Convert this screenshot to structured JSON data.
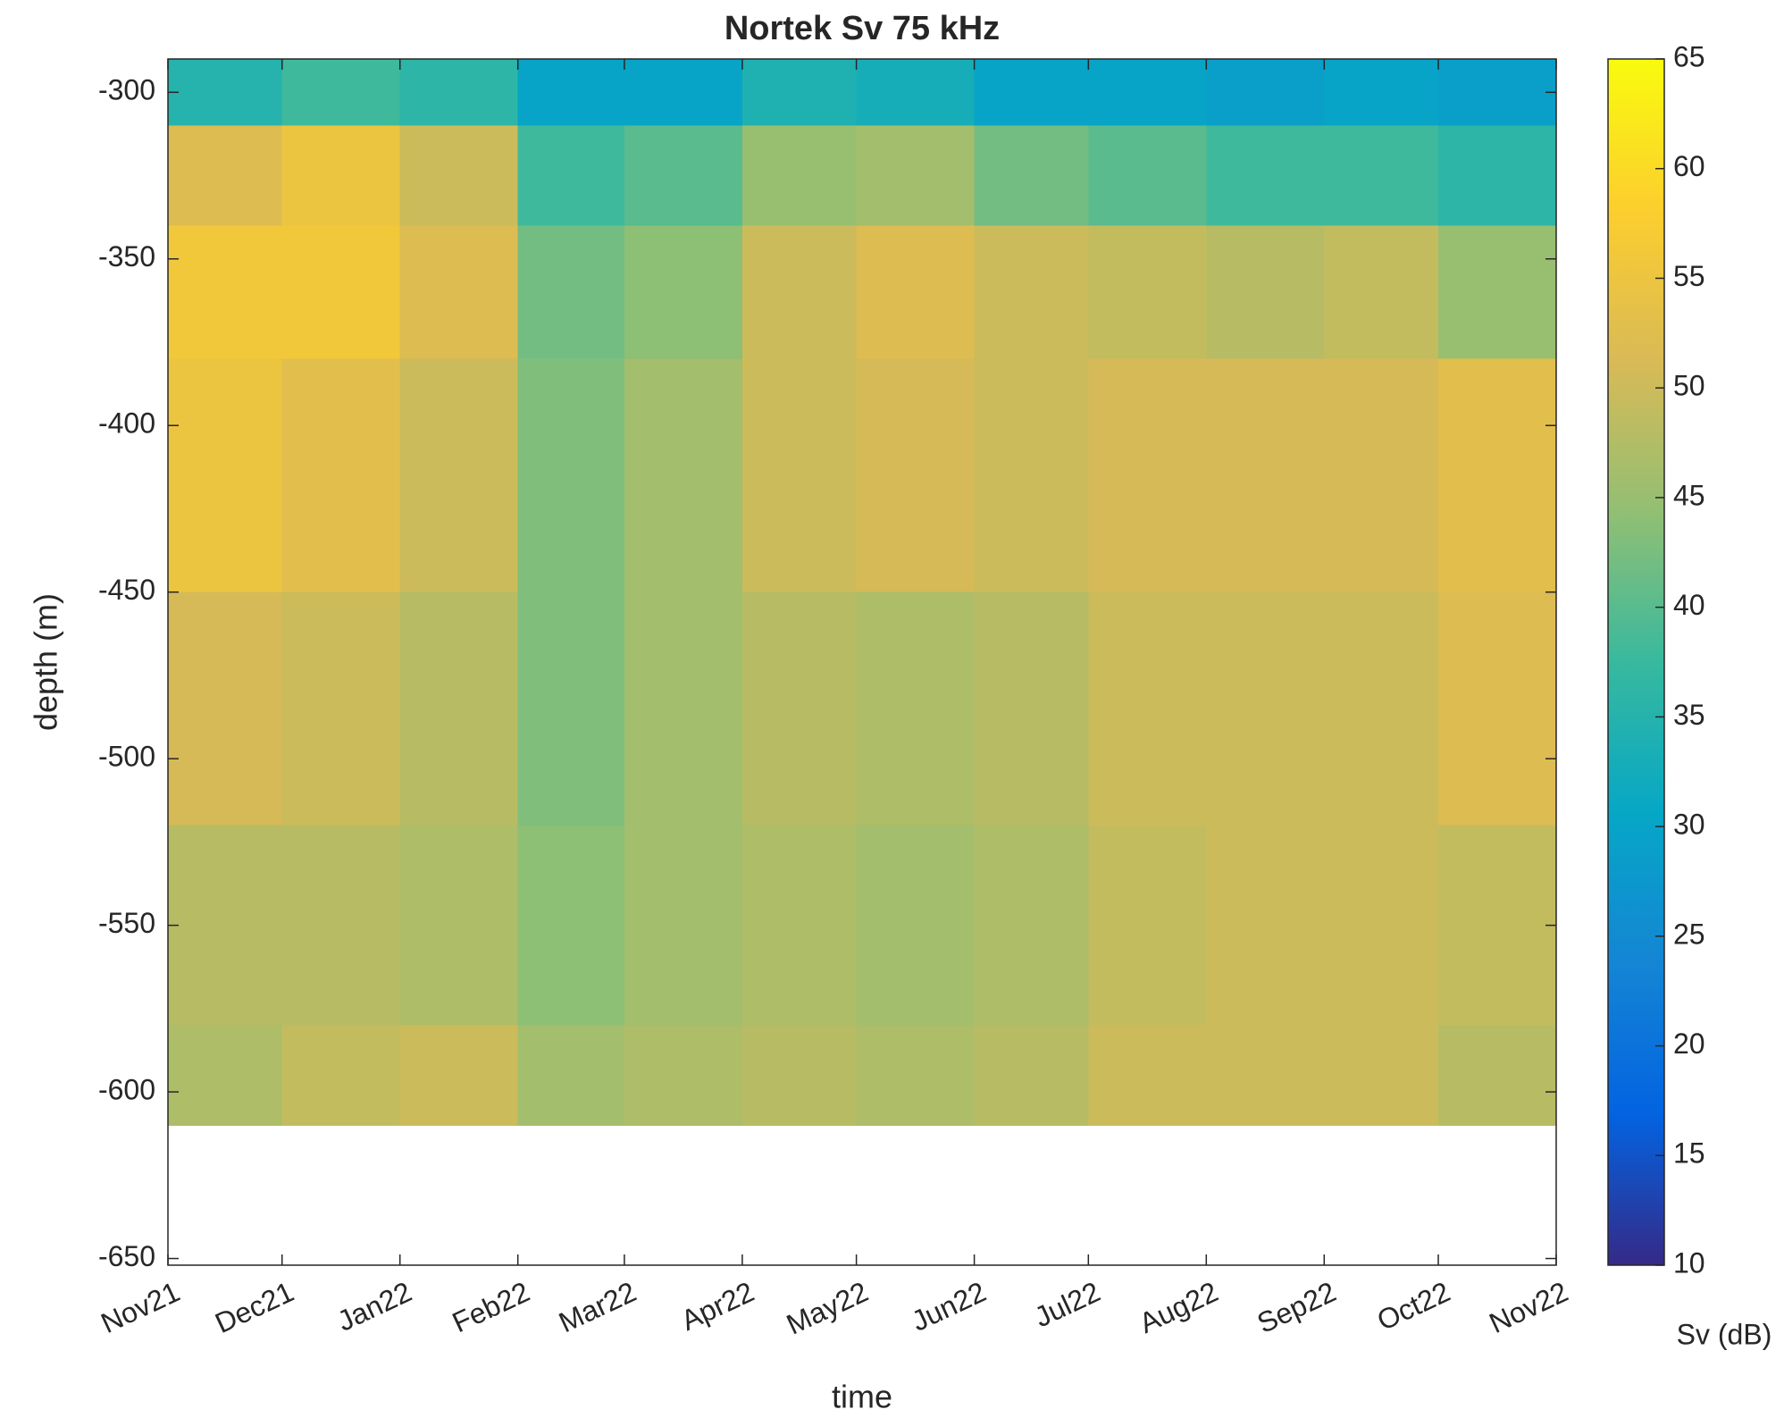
{
  "chart_data": {
    "type": "heatmap",
    "title": "Nortek Sv 75 kHz",
    "xlabel": "time",
    "ylabel": "depth (m)",
    "colorbar_label": "Sv (dB)",
    "xlim": [
      "2021-11",
      "2022-11"
    ],
    "xticks": [
      {
        "value": "2021-11",
        "label": "Nov21"
      },
      {
        "value": "2021-12",
        "label": "Dec21"
      },
      {
        "value": "2022-01",
        "label": "Jan22"
      },
      {
        "value": "2022-02",
        "label": "Feb22"
      },
      {
        "value": "2022-03",
        "label": "Mar22"
      },
      {
        "value": "2022-04",
        "label": "Apr22"
      },
      {
        "value": "2022-05",
        "label": "May22"
      },
      {
        "value": "2022-06",
        "label": "Jun22"
      },
      {
        "value": "2022-07",
        "label": "Jul22"
      },
      {
        "value": "2022-08",
        "label": "Aug22"
      },
      {
        "value": "2022-09",
        "label": "Sep22"
      },
      {
        "value": "2022-10",
        "label": "Oct22"
      },
      {
        "value": "2022-11",
        "label": "Nov22"
      }
    ],
    "ylim": [
      -652,
      -290
    ],
    "yticks": [
      -650,
      -600,
      -550,
      -500,
      -450,
      -400,
      -350,
      -300
    ],
    "x_edges": [
      "2021-11",
      "2021-12",
      "2022-01",
      "2022-02",
      "2022-03",
      "2022-04",
      "2022-05",
      "2022-06",
      "2022-07",
      "2022-08",
      "2022-09",
      "2022-10",
      "2022-11"
    ],
    "y_edges": [
      -290,
      -310,
      -340,
      -380,
      -450,
      -520,
      -580,
      -610
    ],
    "values": [
      [
        35,
        38,
        36,
        30,
        30,
        34,
        33,
        30,
        30,
        29,
        30,
        29
      ],
      [
        52,
        55,
        50,
        38,
        40,
        45,
        46,
        42,
        40,
        38,
        38,
        36
      ],
      [
        56,
        56,
        52,
        42,
        44,
        50,
        52,
        50,
        49,
        48,
        49,
        45
      ],
      [
        55,
        53,
        50,
        43,
        46,
        50,
        51,
        50,
        51,
        51,
        51,
        53
      ],
      [
        51,
        50,
        48,
        43,
        46,
        48,
        47,
        48,
        50,
        50,
        50,
        52
      ],
      [
        48,
        48,
        47,
        44,
        46,
        47,
        46,
        47,
        49,
        50,
        50,
        49
      ],
      [
        47,
        49,
        50,
        46,
        47,
        48,
        47,
        48,
        50,
        50,
        50,
        48
      ]
    ],
    "clim": [
      10,
      65
    ],
    "cticks": [
      10,
      15,
      20,
      25,
      30,
      35,
      40,
      45,
      50,
      55,
      60,
      65
    ],
    "colormap": [
      "#352a87",
      "#0363e1",
      "#1485d4",
      "#06a7c6",
      "#38b99e",
      "#92bf73",
      "#d9ba56",
      "#fcce2e",
      "#f9fb0e"
    ]
  }
}
